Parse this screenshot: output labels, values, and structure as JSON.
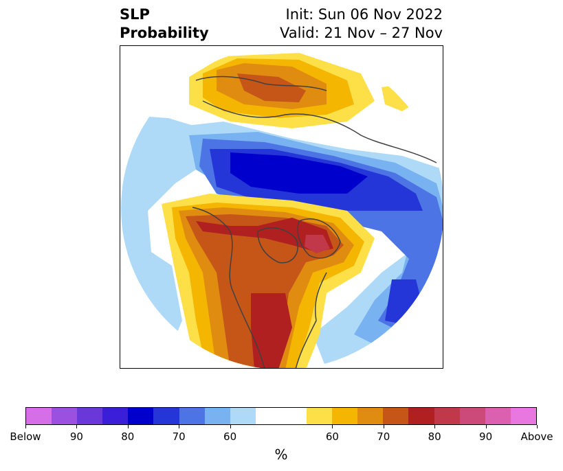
{
  "title": {
    "left_line1": "SLP",
    "left_line2": "Probability",
    "right_line1": "Init: Sun 06 Nov 2022",
    "right_line2": "Valid: 21 Nov – 27 Nov"
  },
  "colorbar": {
    "unit": "%",
    "colors": [
      "#d66ee8",
      "#9b50e0",
      "#6a38d8",
      "#3a1ed8",
      "#0000cc",
      "#2436d8",
      "#4c74e4",
      "#78b2f0",
      "#aedaf8",
      "#ffffff",
      "#ffffff",
      "#fde047",
      "#f4b600",
      "#e08c10",
      "#c55618",
      "#b02020",
      "#c0384a",
      "#cc4a7a",
      "#dc60b0",
      "#e878e0"
    ],
    "ticks": [
      "Below",
      "90",
      "80",
      "70",
      "60",
      "60",
      "70",
      "80",
      "90",
      "Above"
    ]
  },
  "map": {
    "colors": {
      "above_60": "#fde047",
      "above_65": "#f4b600",
      "above_70": "#e08c10",
      "above_75": "#c55618",
      "above_80": "#b02020",
      "above_85": "#c0384a",
      "below_60": "#aedaf8",
      "below_65": "#78b2f0",
      "below_70": "#4c74e4",
      "below_75": "#2436d8",
      "below_80": "#0000cc"
    }
  }
}
